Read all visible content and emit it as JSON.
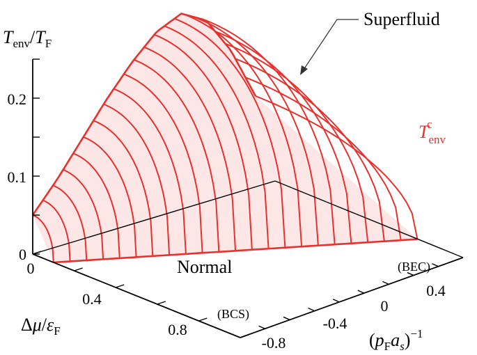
{
  "chart_data": {
    "type": "surface3d",
    "zlabel": "T_env / T_F",
    "xlabel": "Δμ / ε_F",
    "ylabel": "(p_F a_s)^-1",
    "z_ticks": [
      "0",
      "0.1",
      "0.2"
    ],
    "x_ticks": [
      "0",
      "0.4",
      "0.8"
    ],
    "y_ticks": [
      "-0.8",
      "-0.4",
      "0",
      "0.4"
    ],
    "xlim": [
      0,
      1.0
    ],
    "ylim": [
      -1.0,
      0.8
    ],
    "zlim": [
      0,
      0.25
    ],
    "annotations": {
      "superfluid": "Superfluid",
      "normal": "Normal",
      "bcs": "(BCS)",
      "bec": "(BEC)",
      "critical_curve": "T_env^c"
    },
    "series": [
      {
        "name": "T_env^c",
        "y": [
          -1.0,
          -0.8,
          -0.6,
          -0.4,
          -0.2,
          0.0,
          0.2,
          0.4,
          0.6,
          0.8
        ],
        "z_at_dmu0": [
          0.05,
          0.085,
          0.125,
          0.165,
          0.2,
          0.228,
          0.24,
          0.22,
          0.17,
          0.1
        ]
      }
    ],
    "critical_dmu_edge": {
      "y": [
        -1.0,
        0.8
      ],
      "dmu_c": [
        0.1,
        0.78
      ]
    },
    "colors": {
      "surface_fill": "#fde6e6",
      "surface_line": "#e8302c",
      "axis": "#000000"
    }
  }
}
